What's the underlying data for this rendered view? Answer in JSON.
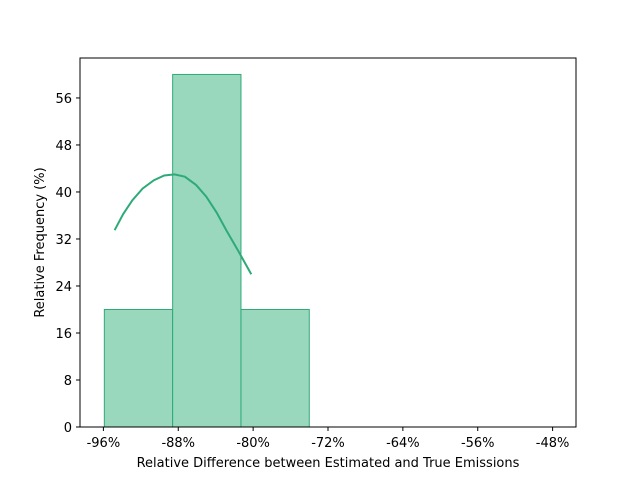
{
  "chart_data": {
    "type": "histogram",
    "title": "",
    "xlabel": "Relative Difference between Estimated and True Emissions",
    "ylabel": "Relative Frequency (%)",
    "x_unit": "%",
    "xlim": [
      -98.5,
      -45.5
    ],
    "ylim": [
      0,
      62.8
    ],
    "x_ticks": [
      {
        "value": -96,
        "label": "-96%"
      },
      {
        "value": -88,
        "label": "-88%"
      },
      {
        "value": -80,
        "label": "-80%"
      },
      {
        "value": -72,
        "label": "-72%"
      },
      {
        "value": -64,
        "label": "-64%"
      },
      {
        "value": -56,
        "label": "-56%"
      },
      {
        "value": -48,
        "label": "-48%"
      }
    ],
    "y_ticks": [
      {
        "value": 0,
        "label": "0"
      },
      {
        "value": 8,
        "label": "8"
      },
      {
        "value": 16,
        "label": "16"
      },
      {
        "value": 24,
        "label": "24"
      },
      {
        "value": 32,
        "label": "32"
      },
      {
        "value": 40,
        "label": "40"
      },
      {
        "value": 48,
        "label": "48"
      },
      {
        "value": 56,
        "label": "56"
      }
    ],
    "bins": [
      {
        "x0": -95.9,
        "x1": -88.6,
        "value": 20
      },
      {
        "x0": -88.6,
        "x1": -81.3,
        "value": 60
      },
      {
        "x0": -81.3,
        "x1": -74.0,
        "value": 20
      },
      {
        "x0": -74.0,
        "x1": -46.2,
        "value": 0
      }
    ],
    "kde_curve": {
      "x": [
        -94.8,
        -93.9,
        -92.9,
        -91.8,
        -90.6,
        -89.5,
        -88.4,
        -87.3,
        -86.1,
        -85.0,
        -83.9,
        -82.8,
        -81.6,
        -80.2
      ],
      "y": [
        33.5,
        36.2,
        38.6,
        40.6,
        42.0,
        42.8,
        43.0,
        42.6,
        41.2,
        39.2,
        36.5,
        33.3,
        30.0,
        26.0
      ]
    },
    "colors": {
      "fill": "#99d8bd",
      "stroke": "#2eaa78",
      "curve": "#2eaa78",
      "axes": "#000000"
    },
    "grid": false,
    "legend": "none"
  }
}
